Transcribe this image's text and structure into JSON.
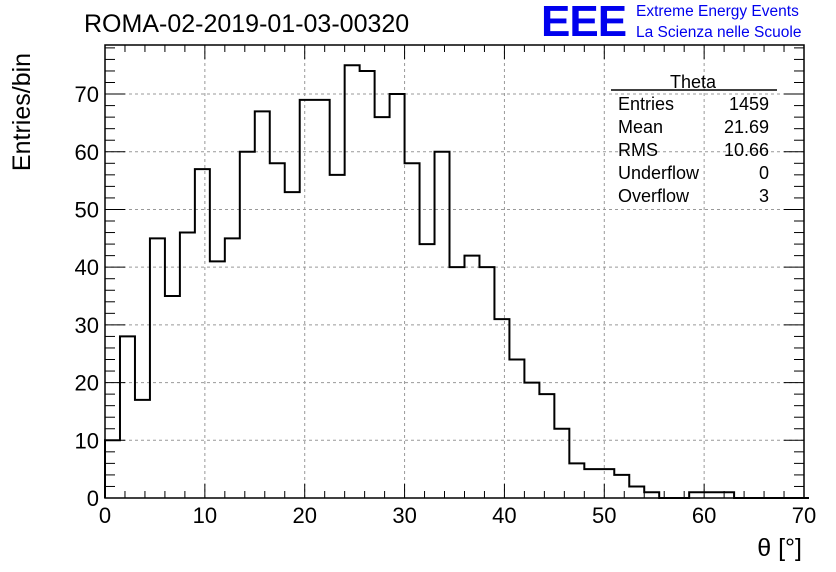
{
  "chart_data": {
    "type": "bar",
    "title": "ROMA-02-2019-01-03-00320",
    "xlabel": "θ [°]",
    "ylabel": "Entries/bin",
    "xlim": [
      0,
      70
    ],
    "ylim": [
      0,
      78.5
    ],
    "grid": true,
    "bin_width": 1.5,
    "bin_edges_start": 0,
    "values": [
      10,
      28,
      17,
      45,
      35,
      46,
      57,
      41,
      45,
      60,
      67,
      58,
      53,
      69,
      69,
      56,
      75,
      74,
      66,
      70,
      58,
      44,
      60,
      40,
      42,
      40,
      31,
      24,
      20,
      18,
      12,
      6,
      5,
      5,
      4,
      2,
      1,
      0,
      0,
      1,
      1,
      1,
      0,
      0,
      0,
      0,
      0
    ],
    "x_ticks": [
      "0",
      "10",
      "20",
      "30",
      "40",
      "50",
      "60",
      "70"
    ],
    "y_ticks": [
      "0",
      "10",
      "20",
      "30",
      "40",
      "50",
      "60",
      "70"
    ],
    "stats_box": {
      "header": "Theta",
      "rows": [
        {
          "label": "Entries",
          "value": "1459"
        },
        {
          "label": "Mean",
          "value": "21.69"
        },
        {
          "label": "RMS",
          "value": "10.66"
        },
        {
          "label": "Underflow",
          "value": "0"
        },
        {
          "label": "Overflow",
          "value": "3"
        }
      ]
    },
    "series_color": "#000000",
    "grid_color": "#999999"
  },
  "logo": {
    "text": "EEE",
    "line1": "Extreme Energy Events",
    "line2": "La Scienza nelle Scuole",
    "color": "#0000ee"
  }
}
